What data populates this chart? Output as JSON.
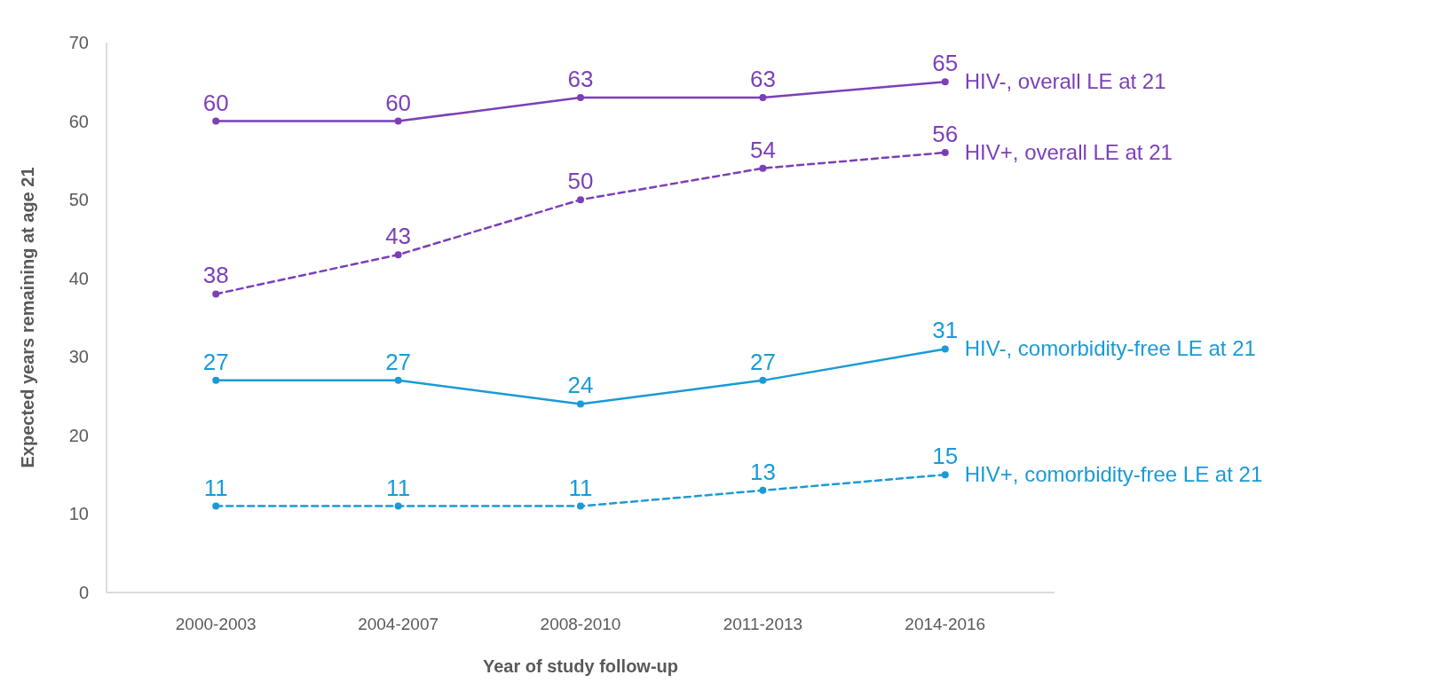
{
  "chart_data": {
    "type": "line",
    "xlabel": "Year of study follow-up",
    "ylabel": "Expected years remaining at age 21",
    "categories": [
      "2000-2003",
      "2004-2007",
      "2008-2010",
      "2011-2013",
      "2014-2016"
    ],
    "series": [
      {
        "name": "HIV-, overall LE at 21",
        "color": "#7b3fb8",
        "line_style": "solid",
        "values": [
          60,
          60,
          63,
          63,
          65
        ]
      },
      {
        "name": "HIV+, overall LE at 21",
        "color": "#7b3fb8",
        "line_style": "dashed",
        "values": [
          38,
          43,
          50,
          54,
          56
        ]
      },
      {
        "name": "HIV-, comorbidity-free LE at 21",
        "color": "#1a9ad6",
        "line_style": "solid",
        "values": [
          27,
          27,
          24,
          27,
          31
        ]
      },
      {
        "name": "HIV+, comorbidity-free LE at 21",
        "color": "#1a9ad6",
        "line_style": "dashed",
        "values": [
          11,
          11,
          11,
          13,
          15
        ]
      }
    ],
    "ylim": [
      0,
      70
    ],
    "yticks": [
      0,
      10,
      20,
      30,
      40,
      50,
      60,
      70
    ],
    "grid": false,
    "marker": "circle",
    "data_labels": true
  }
}
